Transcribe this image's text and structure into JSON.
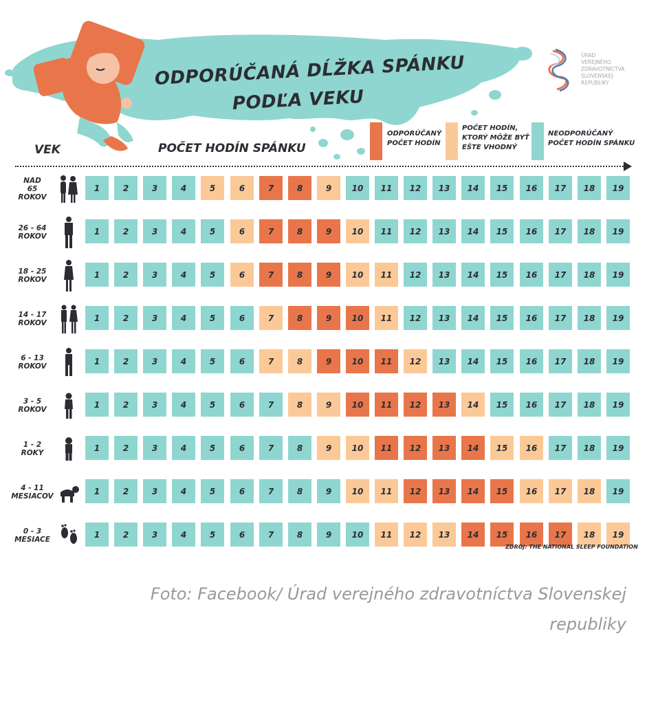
{
  "title": {
    "line1": "ODPORÚČANÁ DĹŽKA SPÁNKU",
    "line2": "PODĽA VEKU"
  },
  "logo": {
    "lines": [
      "ÚRAD",
      "VEREJNÉHO",
      "ZDRAVOTNÍCTVA",
      "SLOVENSKEJ",
      "REPUBLIKY"
    ]
  },
  "headers": {
    "age": "VEK",
    "hours": "POČET HODÍN SPÁNKU"
  },
  "legend": [
    {
      "lines": [
        "ODPORÚČANÝ",
        "POČET HODÍN"
      ],
      "color": "#e8764a"
    },
    {
      "lines": [
        "POČET HODÍN,",
        "KTORÝ MÔŽE BYŤ",
        "EŠTE VHODNÝ"
      ],
      "color": "#fbc997"
    },
    {
      "lines": [
        "NEODPORÚČANÝ",
        "POČET HODÍN SPÁNKU"
      ],
      "color": "#8fd6d0"
    }
  ],
  "colors": {
    "recommended": "#e8764a",
    "acceptable": "#fbc997",
    "not_recommended": "#8fd6d0",
    "splash": "#8fd6d0",
    "text": "#2b2d33"
  },
  "chart_data": {
    "type": "table",
    "columns": [
      "1",
      "2",
      "3",
      "4",
      "5",
      "6",
      "7",
      "8",
      "9",
      "10",
      "11",
      "12",
      "13",
      "14",
      "15",
      "16",
      "17",
      "18",
      "19"
    ],
    "legend_categories": [
      "odporúčaný",
      "môže byť ešte vhodný",
      "neodporúčaný"
    ],
    "rows": [
      {
        "age_lines": [
          "NAD",
          "65",
          "ROKOV"
        ],
        "figure": "elderly-couple-icon",
        "recommended": [
          7,
          8
        ],
        "acceptable": [
          5,
          6,
          9
        ]
      },
      {
        "age_lines": [
          "26 - 64",
          "ROKOV"
        ],
        "figure": "adult-man-icon",
        "recommended": [
          7,
          8,
          9
        ],
        "acceptable": [
          6,
          10
        ]
      },
      {
        "age_lines": [
          "18 - 25",
          "ROKOV"
        ],
        "figure": "young-adult-icon",
        "recommended": [
          7,
          8,
          9
        ],
        "acceptable": [
          6,
          10,
          11
        ]
      },
      {
        "age_lines": [
          "14 - 17",
          "ROKOV"
        ],
        "figure": "teenagers-icon",
        "recommended": [
          8,
          9,
          10
        ],
        "acceptable": [
          7,
          11
        ]
      },
      {
        "age_lines": [
          "6 - 13",
          "ROKOV"
        ],
        "figure": "child-icon",
        "recommended": [
          9,
          10,
          11
        ],
        "acceptable": [
          7,
          8,
          12
        ]
      },
      {
        "age_lines": [
          "3 - 5",
          "ROKOV"
        ],
        "figure": "preschooler-icon",
        "recommended": [
          10,
          11,
          12,
          13
        ],
        "acceptable": [
          8,
          9,
          14
        ]
      },
      {
        "age_lines": [
          "1 - 2",
          "ROKY"
        ],
        "figure": "toddler-icon",
        "recommended": [
          11,
          12,
          13,
          14
        ],
        "acceptable": [
          9,
          10,
          15,
          16
        ]
      },
      {
        "age_lines": [
          "4 - 11",
          "MESIACOV"
        ],
        "figure": "crawling-baby-icon",
        "recommended": [
          12,
          13,
          14,
          15
        ],
        "acceptable": [
          10,
          11,
          16,
          17,
          18
        ]
      },
      {
        "age_lines": [
          "0 - 3",
          "MESIACE"
        ],
        "figure": "footprints-icon",
        "recommended": [
          14,
          15,
          16,
          17
        ],
        "acceptable": [
          11,
          12,
          13,
          18,
          19
        ]
      }
    ]
  },
  "source": "ZDROJ: THE NATIONAL SLEEP FOUNDATION",
  "caption": {
    "line1": "Foto: Facebook/ Úrad verejného zdravotníctva Slovenskej",
    "line2": "republiky"
  }
}
